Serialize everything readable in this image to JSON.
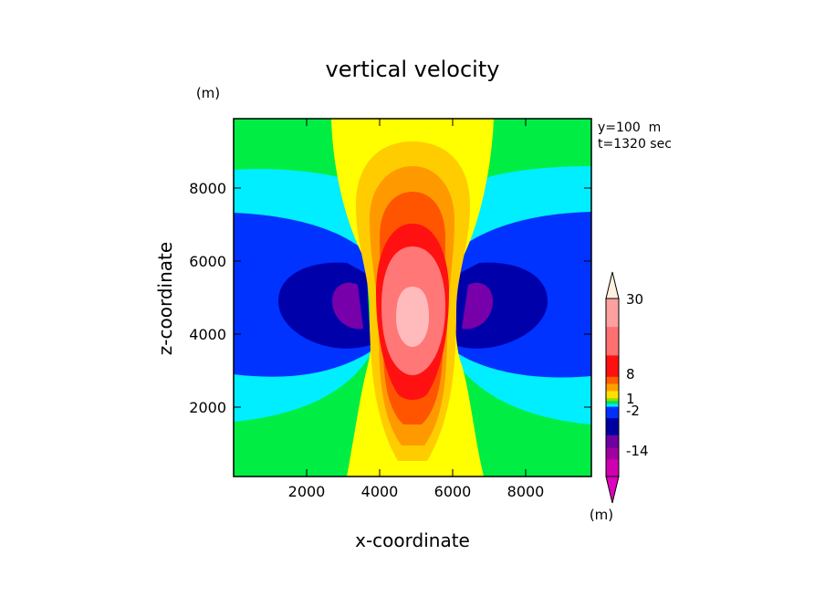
{
  "chart_data": {
    "type": "heatmap",
    "title": "vertical velocity",
    "xlabel": "x-coordinate",
    "ylabel": "z-coordinate",
    "x_unit": "(m)",
    "y_unit": "(m)",
    "annotation_lines": [
      "y=100  m",
      "t=1320 sec"
    ],
    "xlim": [
      0,
      9800
    ],
    "ylim": [
      100,
      9900
    ],
    "x_ticks": [
      2000,
      4000,
      6000,
      8000
    ],
    "y_ticks": [
      2000,
      4000,
      6000,
      8000
    ],
    "x_tick_labels": [
      "2000",
      "4000",
      "6000",
      "8000"
    ],
    "y_tick_labels": [
      "2000",
      "4000",
      "6000",
      "8000"
    ],
    "colorbar": {
      "unit": "(m)",
      "labels": [
        "30",
        "8",
        "1",
        "-2",
        "-14"
      ],
      "levels_top_to_bottom": [
        "#ffa0a0",
        "#ff7070",
        "#ff1010",
        "#ff6000",
        "#ffa000",
        "#ffe000",
        "#90e000",
        "#00e060",
        "#00e8ff",
        "#0030ff",
        "#0000a0",
        "#7000a0",
        "#a000a0",
        "#d000b0"
      ],
      "extend": "both"
    },
    "colors": {
      "background": "#00ee44",
      "cyan": "#00eeff",
      "blue": "#0033ff",
      "dark_blue": "#0000aa",
      "purple": "#7700aa",
      "yellow": "#ffff00",
      "light_orange": "#ffcc00",
      "orange": "#ff9900",
      "red_orange": "#ff5500",
      "red": "#ff1111",
      "light_red": "#ff7777",
      "pink": "#ffbbbb"
    }
  }
}
